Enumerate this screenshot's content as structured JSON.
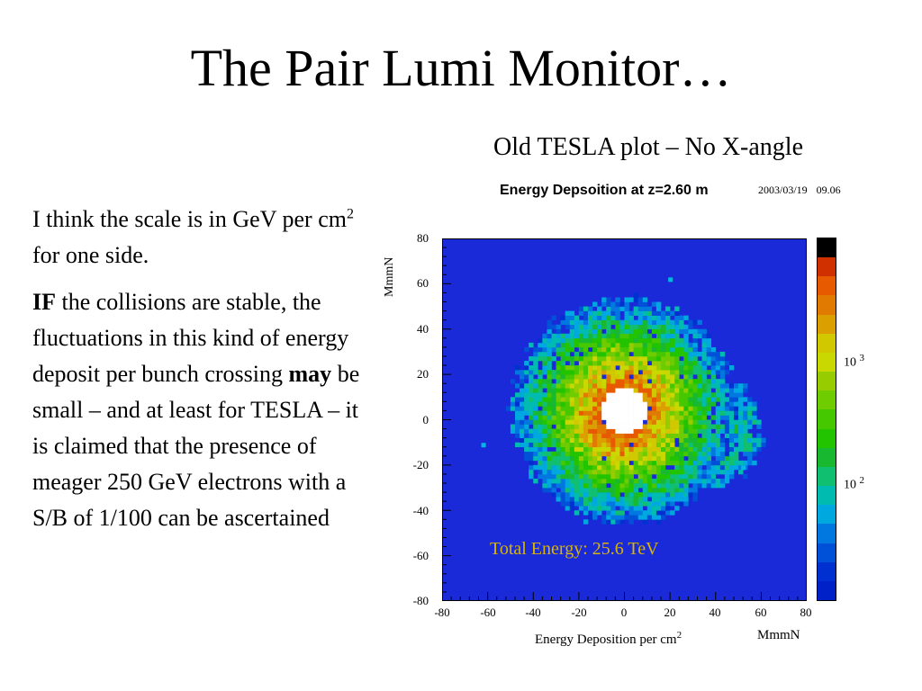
{
  "slide": {
    "title": "The Pair Lumi Monitor…",
    "subtitle": "Old TESLA plot – No X-angle",
    "para1": {
      "text_before_sup": "I think the scale is in GeV per cm",
      "sup": "2",
      "text_after_sup": " for one side."
    },
    "para2": {
      "bold1": "IF",
      "text1": " the collisions are stable, the fluctuations in this kind of energy deposit per bunch crossing ",
      "bold2": "may",
      "text2": " be small – and at least for TESLA – it is claimed that the presence of meager 250 GeV electrons with a S/B of 1/100 can be ascertained"
    }
  },
  "chart_data": {
    "type": "heatmap",
    "title": "Energy Depsoition at z=2.60 m",
    "date_stamp": "2003/03/19",
    "time_stamp": "09.06",
    "xlabel": "Energy Deposition per cm",
    "xlabel_sup": "2",
    "x_unit": "MmmN",
    "ylabel": "MmmN",
    "xlim": [
      -80,
      80
    ],
    "ylim": [
      -80,
      80
    ],
    "x_ticks": [
      "-80",
      "-60",
      "-40",
      "-20",
      "0",
      "20",
      "40",
      "60",
      "80"
    ],
    "y_ticks": [
      "80",
      "60",
      "40",
      "20",
      "0",
      "-20",
      "-40",
      "-60",
      "-80"
    ],
    "colorbar_labels": [
      {
        "base": "10",
        "exp": "3"
      },
      {
        "base": "10",
        "exp": "2"
      }
    ],
    "colorbar_palette": [
      "#000000",
      "#d03000",
      "#e85a00",
      "#e07a00",
      "#dba000",
      "#d2c800",
      "#c8d800",
      "#96cc00",
      "#6ecc00",
      "#46c800",
      "#22c400",
      "#18b830",
      "#10c070",
      "#00bcb0",
      "#00a8e0",
      "#0078e0",
      "#0050d8",
      "#0030d0",
      "#0020c8"
    ],
    "background_color": "#1a2ad8",
    "annotation": "Total Energy: 25.6 TeV",
    "ring": {
      "center": [
        0,
        4
      ],
      "inner_radius": 10,
      "peak_radius": 12,
      "outer_radius": 47
    },
    "tail": {
      "center": [
        34,
        -5
      ],
      "radius": 24
    },
    "isolated_points": [
      [
        20,
        62
      ],
      [
        -62,
        -11
      ],
      [
        52,
        -21
      ]
    ]
  }
}
